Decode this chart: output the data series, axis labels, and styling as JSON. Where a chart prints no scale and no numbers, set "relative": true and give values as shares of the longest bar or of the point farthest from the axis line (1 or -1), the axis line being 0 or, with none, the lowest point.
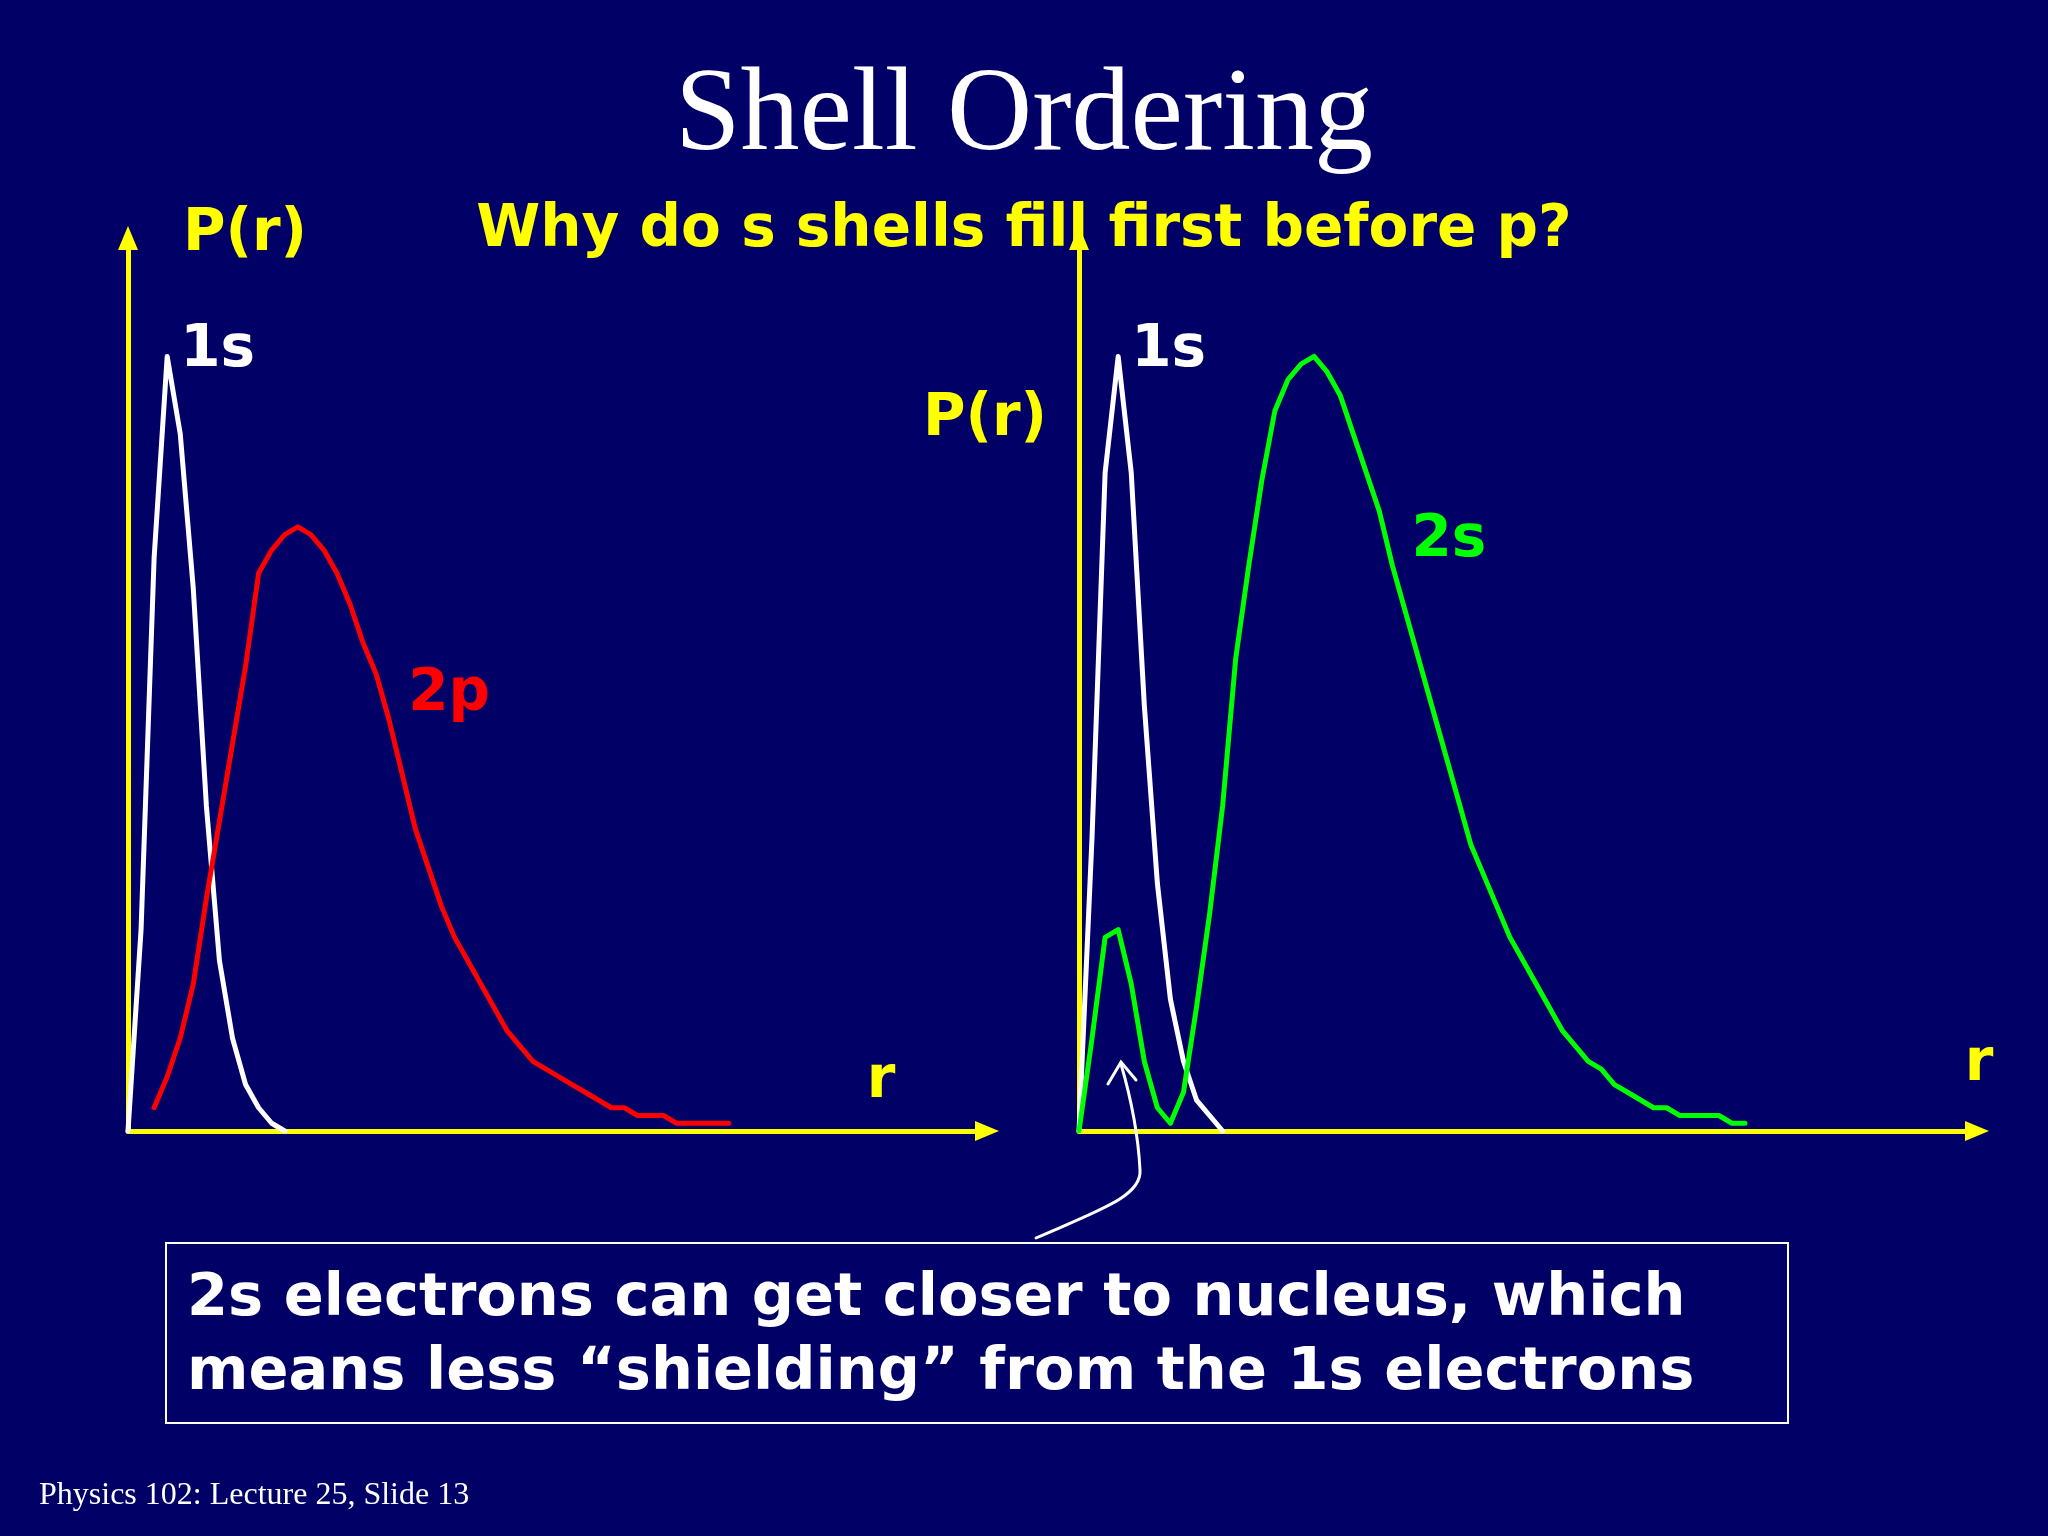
{
  "chart_data": [
    {
      "type": "line",
      "title": "Shell Ordering",
      "subtitle": "Why do s shells fill first before p?",
      "xlabel": "r",
      "ylabel": "P(r)",
      "relative": true,
      "marker": "none",
      "annotations": [
        "Physics 102: Lecture 25, Slide 13"
      ],
      "categories": [
        null,
        null,
        null,
        null,
        null,
        null,
        null,
        null,
        null,
        null,
        null,
        null,
        null,
        null,
        null,
        null,
        null,
        null,
        null,
        null,
        null,
        null,
        null,
        null,
        null,
        null,
        null,
        null,
        null,
        null,
        null,
        null,
        null,
        null,
        null,
        null,
        null,
        null,
        null,
        null,
        null,
        null,
        null,
        null,
        null,
        null,
        null,
        null,
        null,
        null,
        null,
        null,
        null,
        null,
        null,
        null,
        null,
        null,
        null,
        null,
        null,
        null,
        null,
        null,
        null,
        null
      ],
      "series": [
        {
          "name": "1s",
          "color": "#ffffff",
          "values": [
            0,
            0.26,
            0.74,
            1,
            0.9,
            0.7,
            0.42,
            0.22,
            0.12,
            0.06,
            0.03,
            0.01,
            0,
            null,
            null,
            null,
            null,
            null,
            null,
            null,
            null,
            null,
            null,
            null,
            null,
            null,
            null,
            null,
            null,
            null,
            null,
            null,
            null,
            null,
            null,
            null,
            null,
            null,
            null,
            null,
            null,
            null,
            null,
            null,
            null,
            null,
            null,
            null,
            null,
            null,
            null,
            null,
            null,
            null,
            null,
            null,
            null,
            null,
            null,
            null,
            null,
            null,
            null,
            null,
            null,
            null
          ]
        },
        {
          "name": "2p",
          "color": "#ff0000",
          "values": [
            null,
            null,
            0.03,
            0.07,
            0.12,
            0.19,
            0.3,
            0.4,
            0.5,
            0.6,
            0.72,
            0.75,
            0.77,
            0.78,
            0.77,
            0.75,
            0.72,
            0.68,
            0.63,
            0.59,
            0.53,
            0.46,
            0.39,
            0.34,
            0.29,
            0.25,
            0.22,
            0.19,
            0.16,
            0.13,
            0.11,
            0.09,
            0.08,
            0.07,
            0.06,
            0.05,
            0.04,
            0.03,
            0.03,
            0.02,
            0.02,
            0.02,
            0.01,
            0.01,
            0.01,
            0.01,
            0.01,
            null,
            null,
            null,
            null,
            null,
            null,
            null,
            null,
            null,
            null,
            null,
            null,
            null,
            null,
            null,
            null,
            null,
            null,
            null
          ]
        }
      ]
    },
    {
      "type": "line",
      "xlabel": "r",
      "ylabel": "P(r)",
      "relative": true,
      "marker": "none",
      "annotations": [
        "2s electrons can get closer to nucleus, which means less “shielding” from the 1s electrons"
      ],
      "categories": [
        null,
        null,
        null,
        null,
        null,
        null,
        null,
        null,
        null,
        null,
        null,
        null,
        null,
        null,
        null,
        null,
        null,
        null,
        null,
        null,
        null,
        null,
        null,
        null,
        null,
        null,
        null,
        null,
        null,
        null,
        null,
        null,
        null,
        null,
        null,
        null,
        null,
        null,
        null,
        null,
        null,
        null,
        null,
        null,
        null,
        null,
        null,
        null,
        null,
        null,
        null,
        null,
        null,
        null,
        null,
        null,
        null,
        null,
        null,
        null,
        null,
        null,
        null,
        null,
        null,
        null,
        null,
        null,
        null
      ],
      "series": [
        {
          "name": "1s",
          "color": "#ffffff",
          "values": [
            0,
            0.38,
            0.85,
            1,
            0.85,
            0.55,
            0.32,
            0.17,
            0.09,
            0.04,
            0.02,
            0,
            null,
            null,
            null,
            null,
            null,
            null,
            null,
            null,
            null,
            null,
            null,
            null,
            null,
            null,
            null,
            null,
            null,
            null,
            null,
            null,
            null,
            null,
            null,
            null,
            null,
            null,
            null,
            null,
            null,
            null,
            null,
            null,
            null,
            null,
            null,
            null,
            null,
            null,
            null,
            null,
            null,
            null,
            null,
            null,
            null,
            null,
            null,
            null,
            null,
            null,
            null,
            null,
            null,
            null,
            null,
            null,
            null
          ]
        },
        {
          "name": "2s",
          "color": "#00ff00",
          "values": [
            0,
            0.12,
            0.25,
            0.26,
            0.19,
            0.09,
            0.03,
            0.01,
            0.05,
            0.16,
            0.28,
            0.42,
            0.61,
            0.73,
            0.84,
            0.93,
            0.97,
            0.99,
            1,
            0.98,
            0.95,
            0.9,
            0.85,
            0.8,
            0.73,
            0.67,
            0.61,
            0.55,
            0.49,
            0.43,
            0.37,
            0.33,
            0.29,
            0.25,
            0.22,
            0.19,
            0.16,
            0.13,
            0.11,
            0.09,
            0.08,
            0.06,
            0.05,
            0.04,
            0.03,
            0.03,
            0.02,
            0.02,
            0.02,
            0.02,
            0.01,
            0.01,
            null,
            null,
            null,
            null,
            null,
            null,
            null,
            null,
            null,
            null,
            null,
            null,
            null,
            null,
            null,
            null,
            null
          ]
        }
      ]
    }
  ]
}
